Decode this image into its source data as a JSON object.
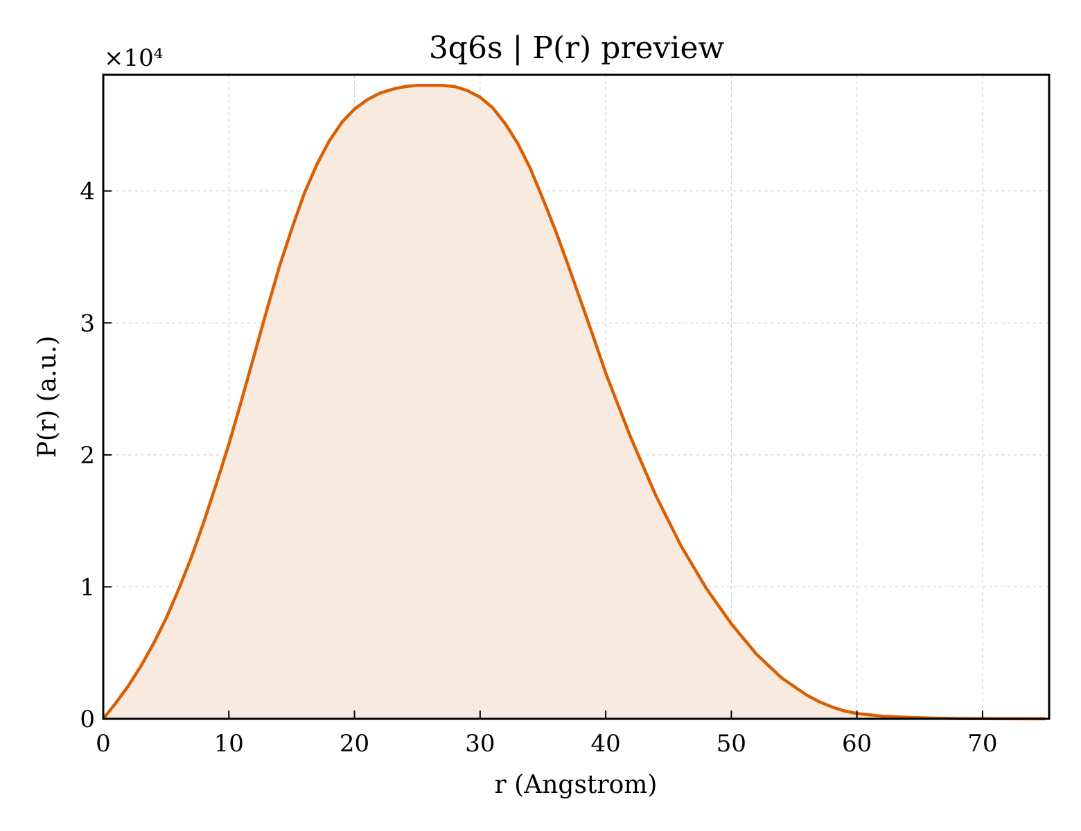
{
  "chart_data": {
    "type": "area",
    "title": "3q6s | P(r) preview",
    "xlabel": "r (Angstrom)",
    "ylabel": "P(r) (a.u.)",
    "y_offset_label": "×10⁴",
    "xlim": [
      0,
      75.3
    ],
    "ylim": [
      0,
      4.88
    ],
    "y_scale_factor": 10000,
    "x_ticks": [
      0,
      10,
      20,
      30,
      40,
      50,
      60,
      70
    ],
    "x_tick_labels": [
      "0",
      "10",
      "20",
      "30",
      "40",
      "50",
      "60",
      "70"
    ],
    "y_ticks": [
      0,
      1,
      2,
      3,
      4
    ],
    "y_tick_labels": [
      "0",
      "1",
      "2",
      "3",
      "4"
    ],
    "grid": true,
    "line_color": "#d95f02",
    "fill_color": "#f9eadf",
    "series": [
      {
        "x": [
          0,
          1,
          2,
          3,
          4,
          5,
          6,
          7,
          8,
          9,
          10,
          11,
          12,
          13,
          14,
          15,
          16,
          17,
          18,
          19,
          20,
          21,
          22,
          23,
          24,
          25,
          26,
          27,
          28,
          29,
          30,
          31,
          32,
          33,
          34,
          35,
          36,
          37,
          38,
          39,
          40,
          42,
          44,
          46,
          48,
          50,
          52,
          54,
          56,
          57,
          58,
          59,
          60,
          61,
          62,
          64,
          66,
          68,
          70,
          72,
          75
        ],
        "y": [
          0,
          0.12,
          0.25,
          0.4,
          0.57,
          0.76,
          0.98,
          1.22,
          1.49,
          1.78,
          2.08,
          2.41,
          2.75,
          3.09,
          3.42,
          3.71,
          3.98,
          4.2,
          4.38,
          4.52,
          4.62,
          4.69,
          4.74,
          4.77,
          4.79,
          4.8,
          4.8,
          4.8,
          4.79,
          4.76,
          4.71,
          4.63,
          4.51,
          4.36,
          4.17,
          3.94,
          3.7,
          3.44,
          3.17,
          2.9,
          2.62,
          2.13,
          1.69,
          1.31,
          0.99,
          0.72,
          0.49,
          0.31,
          0.18,
          0.13,
          0.09,
          0.06,
          0.04,
          0.03,
          0.02,
          0.011,
          0.005,
          0.002,
          0.001,
          0.0005,
          0.0003
        ]
      }
    ]
  }
}
